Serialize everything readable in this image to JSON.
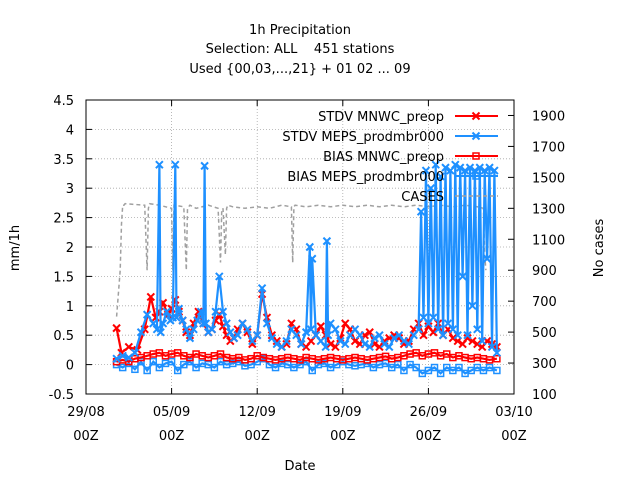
{
  "chart_data": {
    "type": "line",
    "title": [
      "1h Precipitation",
      "Selection: ALL    451 stations",
      "Used {00,03,...,21} + 01 02 ... 09"
    ],
    "xlabel": "Date",
    "ylabel": "mm/1h",
    "y2label": "No cases",
    "xlim": [
      0,
      35
    ],
    "ylim": [
      -0.5,
      4.5
    ],
    "y2lim": [
      100,
      2000
    ],
    "x_ticks": [
      {
        "x": 0,
        "l1": "29/08",
        "l2": "00Z"
      },
      {
        "x": 7,
        "l1": "05/09",
        "l2": "00Z"
      },
      {
        "x": 14,
        "l1": "12/09",
        "l2": "00Z"
      },
      {
        "x": 21,
        "l1": "19/09",
        "l2": "00Z"
      },
      {
        "x": 28,
        "l1": "26/09",
        "l2": "00Z"
      },
      {
        "x": 35,
        "l1": "03/10",
        "l2": "00Z"
      }
    ],
    "y_ticks": [
      "-0.5",
      "0",
      "0.5",
      "1",
      "1.5",
      "2",
      "2.5",
      "3",
      "3.5",
      "4",
      "4.5"
    ],
    "y2_ticks": [
      "100",
      "300",
      "500",
      "700",
      "900",
      "1100",
      "1300",
      "1500",
      "1700",
      "1900"
    ],
    "grid": true,
    "legend_position": "top-right",
    "series": [
      {
        "name": "STDV MNWC_preop",
        "color": "#ff0000",
        "axis": "y",
        "marker": "x",
        "x": [
          2.5,
          2.9,
          3.5,
          4.2,
          4.8,
          5.3,
          5.7,
          6.0,
          6.3,
          6.7,
          7.0,
          7.3,
          7.6,
          7.9,
          8.2,
          8.5,
          8.8,
          9.2,
          9.6,
          10.0,
          10.3,
          10.6,
          10.9,
          11.2,
          11.5,
          11.8,
          12.1,
          12.4,
          12.8,
          13.2,
          13.6,
          14.0,
          14.4,
          14.8,
          15.2,
          15.6,
          16.0,
          16.4,
          16.8,
          17.2,
          17.6,
          18.0,
          18.4,
          18.8,
          19.2,
          19.6,
          20.0,
          20.4,
          20.8,
          21.2,
          21.6,
          22.0,
          22.4,
          22.8,
          23.2,
          23.6,
          24.0,
          24.4,
          24.8,
          25.2,
          25.6,
          26.0,
          26.4,
          26.8,
          27.2,
          27.6,
          28.0,
          28.4,
          28.8,
          29.2,
          29.6,
          30.0,
          30.4,
          30.8,
          31.2,
          31.6,
          32.0,
          32.4,
          32.8,
          33.2,
          33.6
        ],
        "y": [
          0.62,
          0.2,
          0.3,
          0.25,
          0.6,
          1.15,
          0.8,
          0.9,
          1.05,
          0.85,
          0.95,
          1.1,
          0.9,
          0.75,
          0.55,
          0.5,
          0.7,
          0.9,
          0.7,
          0.55,
          0.6,
          0.75,
          0.85,
          0.65,
          0.5,
          0.4,
          0.45,
          0.6,
          0.7,
          0.55,
          0.35,
          0.5,
          1.2,
          0.8,
          0.5,
          0.4,
          0.3,
          0.35,
          0.7,
          0.6,
          0.35,
          0.3,
          0.4,
          0.5,
          0.65,
          0.5,
          0.35,
          0.3,
          0.45,
          0.7,
          0.6,
          0.4,
          0.35,
          0.5,
          0.55,
          0.35,
          0.3,
          0.4,
          0.45,
          0.5,
          0.45,
          0.35,
          0.4,
          0.6,
          0.7,
          0.5,
          0.65,
          0.55,
          0.7,
          0.5,
          0.6,
          0.45,
          0.4,
          0.35,
          0.45,
          0.4,
          0.35,
          0.3,
          0.4,
          0.35,
          0.3
        ]
      },
      {
        "name": "STDV MEPS_prodmbr000",
        "color": "#1e90ff",
        "axis": "y",
        "marker": "x",
        "x": [
          2.5,
          3.0,
          3.5,
          4.0,
          4.5,
          5.0,
          5.5,
          5.8,
          6.0,
          6.1,
          6.3,
          6.6,
          6.9,
          7.1,
          7.3,
          7.4,
          7.6,
          7.9,
          8.2,
          8.5,
          8.8,
          9.1,
          9.4,
          9.6,
          9.7,
          9.8,
          10.0,
          10.3,
          10.6,
          10.9,
          11.2,
          11.5,
          11.8,
          12.1,
          12.4,
          12.8,
          13.2,
          13.6,
          14.0,
          14.4,
          14.8,
          15.2,
          15.6,
          16.0,
          16.4,
          16.8,
          17.2,
          17.6,
          18.0,
          18.3,
          18.4,
          18.5,
          18.8,
          19.2,
          19.6,
          19.7,
          19.8,
          20.0,
          20.4,
          20.8,
          21.2,
          21.6,
          22.0,
          22.4,
          22.8,
          23.2,
          23.6,
          24.0,
          24.4,
          24.8,
          25.2,
          25.6,
          26.0,
          26.4,
          26.8,
          27.2,
          27.4,
          27.6,
          27.8,
          28.0,
          28.2,
          28.4,
          28.6,
          28.8,
          29.0,
          29.2,
          29.4,
          29.6,
          29.8,
          30.0,
          30.2,
          30.4,
          30.6,
          30.8,
          31.0,
          31.2,
          31.4,
          31.6,
          31.8,
          32.0,
          32.2,
          32.4,
          32.6,
          32.8,
          33.0,
          33.2,
          33.4,
          33.6
        ],
        "y": [
          0.1,
          0.15,
          0.12,
          0.2,
          0.55,
          0.85,
          0.7,
          0.6,
          3.4,
          0.55,
          0.7,
          0.9,
          0.75,
          0.8,
          3.4,
          0.8,
          0.95,
          0.75,
          0.6,
          0.45,
          0.6,
          0.75,
          0.9,
          0.7,
          3.38,
          0.7,
          0.55,
          0.6,
          0.9,
          1.5,
          0.9,
          0.7,
          0.55,
          0.45,
          0.5,
          0.7,
          0.6,
          0.4,
          0.5,
          1.3,
          0.7,
          0.45,
          0.35,
          0.3,
          0.4,
          0.6,
          0.5,
          0.35,
          0.55,
          2.0,
          0.6,
          1.8,
          0.5,
          0.4,
          0.3,
          2.1,
          0.5,
          0.7,
          0.6,
          0.4,
          0.35,
          0.5,
          0.6,
          0.5,
          0.35,
          0.3,
          0.45,
          0.5,
          0.35,
          0.3,
          0.45,
          0.5,
          0.4,
          0.35,
          0.5,
          0.6,
          2.6,
          0.8,
          3.3,
          0.7,
          3.0,
          0.8,
          3.4,
          0.6,
          3.2,
          0.5,
          3.35,
          0.7,
          3.3,
          0.6,
          3.4,
          0.5,
          3.35,
          1.5,
          3.3,
          0.5,
          3.35,
          1.0,
          3.3,
          0.6,
          3.35,
          0.4,
          3.3,
          1.8,
          3.35,
          0.3,
          3.3,
          0.2
        ]
      },
      {
        "name": "BIAS MNWC_preop",
        "color": "#ff0000",
        "axis": "y",
        "marker": "square",
        "x": [
          2.5,
          3.0,
          3.5,
          4.0,
          4.5,
          5.0,
          5.5,
          6.0,
          6.5,
          7.0,
          7.5,
          8.0,
          8.5,
          9.0,
          9.5,
          10.0,
          10.5,
          11.0,
          11.5,
          12.0,
          12.5,
          13.0,
          13.5,
          14.0,
          14.5,
          15.0,
          15.5,
          16.0,
          16.5,
          17.0,
          17.5,
          18.0,
          18.5,
          19.0,
          19.5,
          20.0,
          20.5,
          21.0,
          21.5,
          22.0,
          22.5,
          23.0,
          23.5,
          24.0,
          24.5,
          25.0,
          25.5,
          26.0,
          26.5,
          27.0,
          27.5,
          28.0,
          28.5,
          29.0,
          29.5,
          30.0,
          30.5,
          31.0,
          31.5,
          32.0,
          32.5,
          33.0,
          33.6
        ],
        "y": [
          0.05,
          0.08,
          0.05,
          0.1,
          0.12,
          0.15,
          0.18,
          0.2,
          0.15,
          0.18,
          0.2,
          0.15,
          0.12,
          0.18,
          0.15,
          0.12,
          0.15,
          0.18,
          0.12,
          0.1,
          0.12,
          0.08,
          0.1,
          0.15,
          0.12,
          0.1,
          0.08,
          0.1,
          0.12,
          0.1,
          0.08,
          0.12,
          0.1,
          0.08,
          0.1,
          0.12,
          0.1,
          0.08,
          0.1,
          0.12,
          0.1,
          0.08,
          0.1,
          0.12,
          0.14,
          0.1,
          0.12,
          0.15,
          0.18,
          0.2,
          0.15,
          0.18,
          0.2,
          0.15,
          0.18,
          0.12,
          0.15,
          0.12,
          0.1,
          0.12,
          0.1,
          0.08,
          0.1
        ]
      },
      {
        "name": "BIAS MEPS_prodmbr000",
        "color": "#1e90ff",
        "axis": "y",
        "marker": "square",
        "x": [
          2.5,
          3.0,
          3.5,
          4.0,
          4.5,
          5.0,
          5.5,
          6.0,
          6.5,
          7.0,
          7.5,
          8.0,
          8.5,
          9.0,
          9.5,
          10.0,
          10.5,
          11.0,
          11.5,
          12.0,
          12.5,
          13.0,
          13.5,
          14.0,
          14.5,
          15.0,
          15.5,
          16.0,
          16.5,
          17.0,
          17.5,
          18.0,
          18.5,
          19.0,
          19.5,
          20.0,
          20.5,
          21.0,
          21.5,
          22.0,
          22.5,
          23.0,
          23.5,
          24.0,
          24.5,
          25.0,
          25.5,
          26.0,
          26.5,
          27.0,
          27.5,
          28.0,
          28.5,
          29.0,
          29.5,
          30.0,
          30.5,
          31.0,
          31.5,
          32.0,
          32.5,
          33.0,
          33.6
        ],
        "y": [
          0.0,
          -0.05,
          0.02,
          -0.08,
          0.05,
          -0.1,
          0.05,
          -0.05,
          0.02,
          0.05,
          -0.1,
          0.0,
          0.05,
          -0.05,
          0.02,
          0.0,
          -0.05,
          0.05,
          0.0,
          0.02,
          0.05,
          -0.02,
          0.0,
          0.05,
          0.1,
          0.0,
          -0.05,
          0.02,
          0.0,
          -0.05,
          0.0,
          0.05,
          -0.1,
          0.0,
          0.02,
          -0.05,
          0.0,
          0.05,
          0.0,
          -0.02,
          0.0,
          0.02,
          -0.05,
          0.0,
          0.02,
          -0.05,
          0.0,
          -0.1,
          0.0,
          -0.05,
          -0.15,
          -0.1,
          -0.05,
          -0.15,
          -0.05,
          -0.1,
          -0.05,
          -0.15,
          -0.1,
          -0.05,
          -0.1,
          -0.05,
          -0.1
        ]
      },
      {
        "name": "CASES",
        "color": "#a0a0a0",
        "axis": "y2",
        "marker": "none",
        "dashed": true,
        "x": [
          2.5,
          2.8,
          2.9,
          3.0,
          3.1,
          3.2,
          4.8,
          5.0,
          5.1,
          5.2,
          6.0,
          7.0,
          7.1,
          7.2,
          8.0,
          8.2,
          8.3,
          8.5,
          9.0,
          10.0,
          10.8,
          11.0,
          11.1,
          11.2,
          11.4,
          11.5,
          11.6,
          12.0,
          13.0,
          14.0,
          15.0,
          16.0,
          16.8,
          16.9,
          17.0,
          17.1,
          18.0,
          19.0,
          20.0,
          21.0,
          22.0,
          23.0,
          24.0,
          25.0,
          26.0,
          27.0,
          28.0,
          29.0,
          30.0,
          31.0,
          32.0,
          32.5,
          32.6,
          32.7
        ],
        "y": [
          600,
          900,
          1200,
          1320,
          1320,
          1330,
          1320,
          900,
          1300,
          1330,
          1320,
          1300,
          900,
          1320,
          1310,
          900,
          1300,
          1320,
          1300,
          1320,
          1300,
          950,
          1280,
          1300,
          1000,
          1300,
          1320,
          1310,
          1300,
          1310,
          1300,
          1320,
          1310,
          950,
          1310,
          1320,
          1310,
          1320,
          1310,
          1320,
          1310,
          1320,
          1310,
          1320,
          1310,
          1320,
          1310,
          1320,
          1310,
          1320,
          1310,
          1300,
          1000,
          900
        ]
      }
    ]
  }
}
